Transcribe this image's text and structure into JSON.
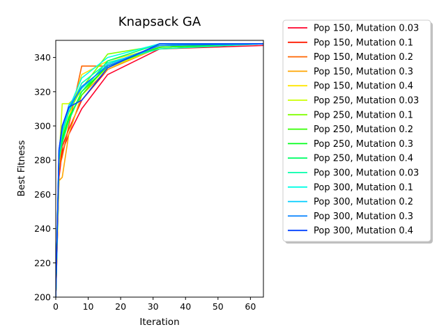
{
  "chart_data": {
    "type": "line",
    "title": "Knapsack GA",
    "xlabel": "Iteration",
    "ylabel": "Best Fitness",
    "xlim": [
      0,
      64
    ],
    "ylim": [
      200,
      350
    ],
    "xticks": [
      0,
      10,
      20,
      30,
      40,
      50,
      60
    ],
    "yticks": [
      200,
      220,
      240,
      260,
      280,
      300,
      320,
      340
    ],
    "grid": false,
    "legend_position": "outside-right",
    "x": [
      0,
      1,
      2,
      4,
      8,
      16,
      32,
      64
    ],
    "series": [
      {
        "name": "Pop 150, Mutation 0.03",
        "color": "#ff0029",
        "values": [
          200,
          270,
          285,
          295,
          310,
          330,
          345,
          347
        ]
      },
      {
        "name": "Pop 150, Mutation 0.1",
        "color": "#ff1a00",
        "values": [
          200,
          272,
          288,
          298,
          315,
          333,
          346,
          348
        ]
      },
      {
        "name": "Pop 150, Mutation 0.2",
        "color": "#ff6600",
        "values": [
          200,
          275,
          282,
          300,
          335,
          335,
          346,
          348
        ]
      },
      {
        "name": "Pop 150, Mutation 0.3",
        "color": "#ffa500",
        "values": [
          200,
          268,
          270,
          295,
          318,
          333,
          346,
          348
        ]
      },
      {
        "name": "Pop 150, Mutation 0.4",
        "color": "#ffe600",
        "values": [
          200,
          278,
          290,
          305,
          330,
          338,
          346,
          348
        ]
      },
      {
        "name": "Pop 250, Mutation 0.03",
        "color": "#ccff00",
        "values": [
          200,
          280,
          313,
          313,
          320,
          334,
          346,
          348
        ]
      },
      {
        "name": "Pop 250, Mutation 0.1",
        "color": "#80ff00",
        "values": [
          200,
          282,
          295,
          308,
          322,
          342,
          347,
          348
        ]
      },
      {
        "name": "Pop 250, Mutation 0.2",
        "color": "#33ff00",
        "values": [
          200,
          280,
          293,
          305,
          318,
          336,
          347,
          348
        ]
      },
      {
        "name": "Pop 250, Mutation 0.3",
        "color": "#00ff1a",
        "values": [
          200,
          283,
          292,
          304,
          320,
          335,
          346,
          348
        ]
      },
      {
        "name": "Pop 250, Mutation 0.4",
        "color": "#00ff66",
        "values": [
          200,
          281,
          290,
          303,
          320,
          338,
          348,
          348
        ]
      },
      {
        "name": "Pop 300, Mutation 0.03",
        "color": "#00ffaa",
        "values": [
          200,
          283,
          296,
          308,
          325,
          337,
          345,
          348
        ]
      },
      {
        "name": "Pop 300, Mutation 0.1",
        "color": "#00ffe6",
        "values": [
          200,
          285,
          298,
          310,
          328,
          340,
          348,
          348
        ]
      },
      {
        "name": "Pop 300, Mutation 0.2",
        "color": "#00ccff",
        "values": [
          200,
          284,
          297,
          312,
          322,
          336,
          347,
          348
        ]
      },
      {
        "name": "Pop 300, Mutation 0.3",
        "color": "#0080ff",
        "values": [
          200,
          286,
          300,
          310,
          323,
          335,
          347,
          348
        ]
      },
      {
        "name": "Pop 300, Mutation 0.4",
        "color": "#0040ff",
        "values": [
          200,
          286,
          300,
          311,
          315,
          334,
          348,
          348
        ]
      }
    ]
  }
}
